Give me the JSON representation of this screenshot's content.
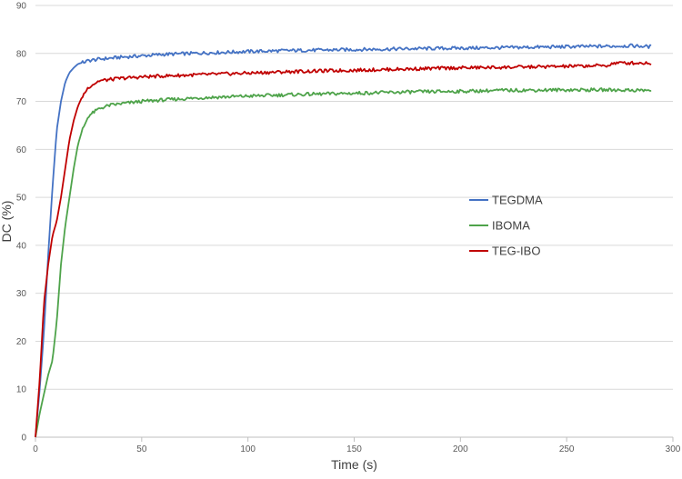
{
  "chart_data": {
    "type": "line",
    "title": "",
    "xlabel": "Time (s)",
    "ylabel": "DC (%)",
    "xlim": [
      0,
      300
    ],
    "ylim": [
      0,
      90
    ],
    "xticks": [
      0,
      50,
      100,
      150,
      200,
      250,
      300
    ],
    "yticks": [
      0,
      10,
      20,
      30,
      40,
      50,
      60,
      70,
      80,
      90
    ],
    "grid": "horizontal",
    "legend": "center-right",
    "series": [
      {
        "name": "TEGDMA",
        "color": "#4472c4",
        "points": [
          [
            0,
            0
          ],
          [
            2,
            10
          ],
          [
            4,
            22
          ],
          [
            6,
            38
          ],
          [
            8,
            52
          ],
          [
            10,
            64
          ],
          [
            12,
            70
          ],
          [
            14,
            74
          ],
          [
            16,
            76
          ],
          [
            18,
            77
          ],
          [
            20,
            77.8
          ],
          [
            25,
            78.5
          ],
          [
            30,
            78.8
          ],
          [
            40,
            79.2
          ],
          [
            50,
            79.5
          ],
          [
            60,
            79.8
          ],
          [
            80,
            80.1
          ],
          [
            100,
            80.4
          ],
          [
            120,
            80.6
          ],
          [
            150,
            80.8
          ],
          [
            180,
            81
          ],
          [
            200,
            81.1
          ],
          [
            220,
            81.2
          ],
          [
            250,
            81.4
          ],
          [
            270,
            81.5
          ],
          [
            280,
            81.6
          ],
          [
            290,
            81.4
          ]
        ]
      },
      {
        "name": "IBOMA",
        "color": "#4ea34a",
        "points": [
          [
            0,
            0
          ],
          [
            2,
            5
          ],
          [
            4,
            9
          ],
          [
            6,
            13
          ],
          [
            8,
            16
          ],
          [
            10,
            24
          ],
          [
            12,
            36
          ],
          [
            14,
            44
          ],
          [
            16,
            50
          ],
          [
            18,
            56
          ],
          [
            20,
            61
          ],
          [
            22,
            64
          ],
          [
            25,
            67
          ],
          [
            30,
            68.5
          ],
          [
            35,
            69.2
          ],
          [
            40,
            69.5
          ],
          [
            50,
            70
          ],
          [
            60,
            70.3
          ],
          [
            80,
            70.8
          ],
          [
            100,
            71.1
          ],
          [
            120,
            71.4
          ],
          [
            150,
            71.7
          ],
          [
            180,
            72
          ],
          [
            200,
            72.1
          ],
          [
            220,
            72.3
          ],
          [
            250,
            72.4
          ],
          [
            270,
            72.4
          ],
          [
            290,
            72.3
          ]
        ]
      },
      {
        "name": "TEG-IBO",
        "color": "#c00000",
        "points": [
          [
            0,
            0
          ],
          [
            2,
            12
          ],
          [
            4,
            28
          ],
          [
            6,
            36
          ],
          [
            8,
            42
          ],
          [
            10,
            45
          ],
          [
            12,
            50
          ],
          [
            14,
            56
          ],
          [
            16,
            62
          ],
          [
            18,
            66
          ],
          [
            20,
            69
          ],
          [
            22,
            71
          ],
          [
            25,
            73
          ],
          [
            30,
            74.3
          ],
          [
            40,
            74.8
          ],
          [
            50,
            75.1
          ],
          [
            60,
            75.3
          ],
          [
            80,
            75.6
          ],
          [
            100,
            75.9
          ],
          [
            120,
            76.2
          ],
          [
            150,
            76.5
          ],
          [
            180,
            76.8
          ],
          [
            200,
            77
          ],
          [
            220,
            77.1
          ],
          [
            250,
            77.3
          ],
          [
            270,
            77.5
          ],
          [
            272,
            78
          ],
          [
            290,
            78
          ]
        ]
      }
    ]
  }
}
